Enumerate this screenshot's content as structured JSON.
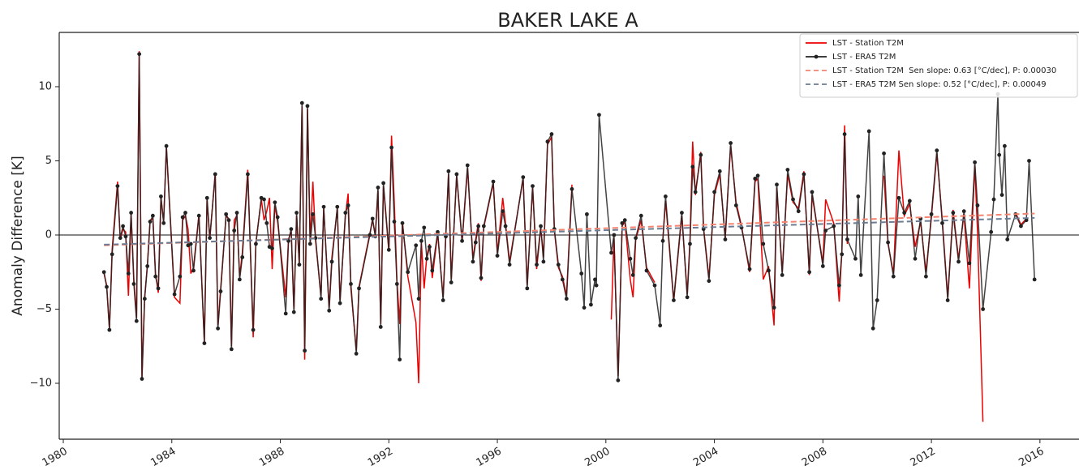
{
  "chart_data": {
    "type": "line",
    "title": "BAKER LAKE A",
    "ylabel": "Anomaly Difference [K]",
    "x": [
      1981.5,
      1981.6,
      1981.7,
      1981.8,
      1982.0,
      1982.1,
      1982.2,
      1982.3,
      1982.4,
      1982.5,
      1982.6,
      1982.7,
      1982.8,
      1982.9,
      1983.0,
      1983.1,
      1983.2,
      1983.3,
      1983.4,
      1983.5,
      1983.6,
      1983.7,
      1983.8,
      1984.1,
      1984.3,
      1984.4,
      1984.5,
      1984.6,
      1984.7,
      1984.8,
      1985.0,
      1985.2,
      1985.3,
      1985.4,
      1985.6,
      1985.7,
      1985.8,
      1986.0,
      1986.1,
      1986.2,
      1986.3,
      1986.4,
      1986.5,
      1986.6,
      1986.8,
      1987.0,
      1987.1,
      1987.3,
      1987.4,
      1987.5,
      1987.6,
      1987.7,
      1987.8,
      1987.9,
      1988.2,
      1988.3,
      1988.4,
      1988.5,
      1988.6,
      1988.7,
      1988.8,
      1988.9,
      1989.0,
      1989.1,
      1989.2,
      1989.3,
      1989.5,
      1989.6,
      1989.8,
      1989.9,
      1990.1,
      1990.2,
      1990.4,
      1990.5,
      1990.6,
      1990.8,
      1990.9,
      1991.3,
      1991.4,
      1991.5,
      1991.6,
      1991.7,
      1991.8,
      1992.0,
      1992.1,
      1992.2,
      1992.3,
      1992.4,
      1992.5,
      1992.7,
      1993.0,
      1993.1,
      1993.2,
      1993.3,
      1993.4,
      1993.5,
      1993.6,
      1993.8,
      1994.0,
      1994.1,
      1994.2,
      1994.3,
      1994.5,
      1994.7,
      1994.9,
      1995.1,
      1995.2,
      1995.3,
      1995.4,
      1995.5,
      1995.85,
      1996.0,
      1996.2,
      1996.3,
      1996.45,
      1996.95,
      1997.1,
      1997.3,
      1997.45,
      1997.6,
      1997.7,
      1997.85,
      1998.0,
      1998.1,
      1998.25,
      1998.4,
      1998.55,
      1998.75,
      1999.1,
      1999.2,
      1999.3,
      1999.45,
      1999.6,
      1999.65,
      1999.75,
      2000.2,
      2000.3,
      2000.45,
      2000.6,
      2000.7,
      2000.9,
      2001.0,
      2001.1,
      2001.3,
      2001.5,
      2001.8,
      2002.0,
      2002.1,
      2002.2,
      2002.5,
      2002.8,
      2003.0,
      2003.1,
      2003.2,
      2003.3,
      2003.5,
      2003.6,
      2003.8,
      2004.0,
      2004.2,
      2004.4,
      2004.6,
      2004.8,
      2005.0,
      2005.3,
      2005.5,
      2005.6,
      2005.8,
      2006.0,
      2006.2,
      2006.3,
      2006.5,
      2006.7,
      2006.9,
      2007.1,
      2007.3,
      2007.5,
      2007.6,
      2008.0,
      2008.1,
      2008.4,
      2008.6,
      2008.7,
      2008.8,
      2008.9,
      2009.2,
      2009.3,
      2009.4,
      2009.7,
      2009.85,
      2010.0,
      2010.25,
      2010.4,
      2010.6,
      2010.8,
      2011.0,
      2011.2,
      2011.4,
      2011.6,
      2011.8,
      2012.0,
      2012.2,
      2012.4,
      2012.6,
      2012.8,
      2013.0,
      2013.2,
      2013.4,
      2013.6,
      2013.7,
      2013.9,
      2014.2,
      2014.3,
      2014.45,
      2014.5,
      2014.6,
      2014.7,
      2014.8,
      2015.1,
      2015.3,
      2015.5,
      2015.6,
      2015.8
    ],
    "series": [
      {
        "name": "LST - Station T2M",
        "color": "#ee0000",
        "style": "solid",
        "marker": false,
        "values": [
          -2.6,
          -3.4,
          -6.3,
          -1.0,
          3.6,
          -0.3,
          0.4,
          0.2,
          -4.1,
          1.4,
          -3.0,
          -5.6,
          12.4,
          -9.6,
          -4.2,
          -2.0,
          1.0,
          1.1,
          -2.6,
          -3.9,
          2.5,
          0.9,
          5.9,
          -4.2,
          -4.6,
          1.0,
          1.3,
          0.4,
          -2.6,
          -2.2,
          1.4,
          -7.2,
          2.4,
          -0.3,
          4.2,
          -6.1,
          -3.6,
          1.3,
          1.1,
          -7.5,
          1.0,
          1.3,
          -2.8,
          -1.2,
          4.4,
          -6.9,
          -0.5,
          2.4,
          1.0,
          1.6,
          2.5,
          -2.3,
          2.0,
          0.9,
          -4.2,
          -0.3,
          0.3,
          -5.0,
          1.3,
          -1.9,
          8.7,
          -8.4,
          8.5,
          -0.5,
          3.6,
          -0.4,
          -4.1,
          1.8,
          -4.9,
          -1.5,
          1.8,
          -4.4,
          1.3,
          2.8,
          -3.6,
          -7.8,
          -3.5,
          0.1,
          1.0,
          0.0,
          3.0,
          -6.0,
          3.3,
          -1.1,
          6.7,
          2.2,
          -3.1,
          -6.0,
          0.9,
          -2.8,
          -5.9,
          -10.0,
          -0.5,
          -3.6,
          -1.4,
          -0.6,
          -2.9,
          0.1,
          -4.2,
          0.0,
          4.1,
          -3.0,
          4.0,
          -0.5,
          4.5,
          -1.6,
          -0.3,
          0.8,
          -3.1,
          0.5,
          3.5,
          -1.2,
          2.5,
          0.8,
          -1.8,
          3.8,
          -3.4,
          3.2,
          -2.3,
          0.5,
          -1.5,
          6.1,
          6.6,
          0.3,
          -2.2,
          -2.8,
          -4.1,
          3.4,
          null,
          null,
          null,
          null,
          null,
          null,
          null,
          -5.7,
          -0.2,
          -9.5,
          0.6,
          0.9,
          -3.0,
          -4.2,
          -0.3,
          1.0,
          -2.2,
          -3.2,
          null,
          -0.3,
          2.3,
          -4.5,
          1.3,
          -4.0,
          -0.3,
          6.3,
          2.7,
          5.6,
          0.5,
          -2.9,
          2.7,
          4.1,
          -0.2,
          6.0,
          2.2,
          0.6,
          -2.5,
          3.6,
          3.8,
          -3.0,
          -2.1,
          -6.1,
          3.2,
          -2.5,
          4.1,
          2.2,
          1.8,
          4.3,
          -2.7,
          2.7,
          -1.9,
          2.4,
          0.8,
          -4.5,
          -1.1,
          7.4,
          -0.6,
          null,
          null,
          null,
          null,
          null,
          null,
          4.0,
          -0.6,
          -2.6,
          5.7,
          1.3,
          2.1,
          -0.8,
          0.9,
          -2.5,
          1.2,
          5.5,
          1.0,
          -4.2,
          1.7,
          -1.6,
          1.4,
          -3.6,
          4.7,
          0.2,
          -12.6,
          null,
          null,
          null,
          null,
          null,
          null,
          null,
          1.5,
          0.7,
          1.1,
          null,
          null
        ]
      },
      {
        "name": "LST - ERA5 T2M",
        "color": "#222222",
        "style": "solid",
        "marker": true,
        "values": [
          -2.5,
          -3.5,
          -6.4,
          -1.3,
          3.3,
          -0.2,
          0.6,
          -0.1,
          -2.6,
          1.5,
          -3.3,
          -5.8,
          12.2,
          -9.7,
          -4.3,
          -2.1,
          0.9,
          1.3,
          -2.8,
          -3.6,
          2.6,
          0.8,
          6.0,
          -4.0,
          -2.8,
          1.2,
          1.5,
          -0.7,
          -0.6,
          -2.4,
          1.3,
          -7.3,
          2.5,
          -0.2,
          4.1,
          -6.3,
          -3.8,
          1.4,
          1.0,
          -7.7,
          0.3,
          1.5,
          -3.0,
          -1.5,
          4.1,
          -6.4,
          -0.6,
          2.5,
          2.4,
          0.8,
          -0.8,
          -0.9,
          2.2,
          1.2,
          -5.3,
          -0.4,
          0.4,
          -5.2,
          1.5,
          -2.0,
          8.9,
          -7.8,
          8.7,
          -0.6,
          1.4,
          -0.2,
          -4.3,
          1.9,
          -5.1,
          -1.8,
          1.9,
          -4.6,
          1.5,
          2.0,
          -3.3,
          -8.0,
          -3.6,
          0.0,
          1.1,
          -0.1,
          3.2,
          -6.2,
          3.5,
          -1.0,
          5.9,
          0.9,
          -3.3,
          -8.4,
          0.8,
          -2.5,
          -0.7,
          -4.3,
          -0.4,
          0.5,
          -1.6,
          -0.8,
          -2.4,
          0.2,
          -4.4,
          -0.1,
          4.3,
          -3.2,
          4.1,
          -0.4,
          4.7,
          -1.8,
          -0.5,
          0.6,
          -2.9,
          0.6,
          3.6,
          -1.4,
          1.6,
          0.6,
          -2.0,
          3.9,
          -3.6,
          3.3,
          -2.0,
          0.6,
          -1.8,
          6.3,
          6.8,
          0.4,
          -2.0,
          -3.0,
          -4.3,
          3.1,
          -2.6,
          -4.9,
          1.4,
          -4.7,
          -3.0,
          -3.4,
          8.1,
          -1.2,
          0.0,
          -9.8,
          0.8,
          1.0,
          -1.6,
          -2.7,
          -0.2,
          1.3,
          -2.4,
          -3.4,
          -6.1,
          -0.4,
          2.6,
          -4.4,
          1.5,
          -4.2,
          -0.6,
          4.6,
          2.9,
          5.4,
          0.4,
          -3.1,
          2.9,
          4.3,
          -0.3,
          6.2,
          2.0,
          0.5,
          -2.3,
          3.8,
          4.0,
          -0.6,
          -2.4,
          -4.9,
          3.4,
          -2.7,
          4.4,
          2.4,
          1.6,
          4.1,
          -2.5,
          2.9,
          -2.1,
          0.3,
          0.6,
          -3.4,
          -1.3,
          6.8,
          -0.3,
          -1.6,
          2.6,
          -2.7,
          7.0,
          -6.3,
          -4.4,
          5.5,
          -0.5,
          -2.8,
          2.5,
          1.5,
          2.3,
          -1.6,
          1.1,
          -2.8,
          1.4,
          5.7,
          0.8,
          -4.4,
          1.5,
          -1.8,
          1.6,
          -1.9,
          4.9,
          2.0,
          -5.0,
          0.2,
          2.4,
          9.5,
          5.4,
          2.7,
          6.0,
          -0.3,
          1.4,
          0.6,
          1.0,
          5.0,
          -3.0
        ]
      },
      {
        "name": "LST - Station T2M  Sen slope: 0.63 [°C/dec], P: 0.00030",
        "color": "#f4846f",
        "style": "dashed",
        "marker": false,
        "x": [
          1981.5,
          2015.8
        ],
        "values": [
          -0.7,
          1.45
        ]
      },
      {
        "name": "LST - ERA5 T2M Sen slope: 0.52 [°C/dec], P: 0.00049",
        "color": "#6c7c92",
        "style": "dashed",
        "marker": false,
        "x": [
          1981.5,
          2015.8
        ],
        "values": [
          -0.65,
          1.15
        ]
      }
    ],
    "hline": 0,
    "xlim": [
      1979.85,
      2017.44
    ],
    "xticks": [
      1980,
      1984,
      1988,
      1992,
      1996,
      2000,
      2004,
      2008,
      2012,
      2016
    ],
    "ylim": [
      -13.77,
      13.66
    ],
    "yticks": [
      {
        "value": -10,
        "label": "−10"
      },
      {
        "value": -5,
        "label": "−5"
      },
      0,
      5,
      10
    ],
    "grid": false,
    "legend": "upper right"
  }
}
